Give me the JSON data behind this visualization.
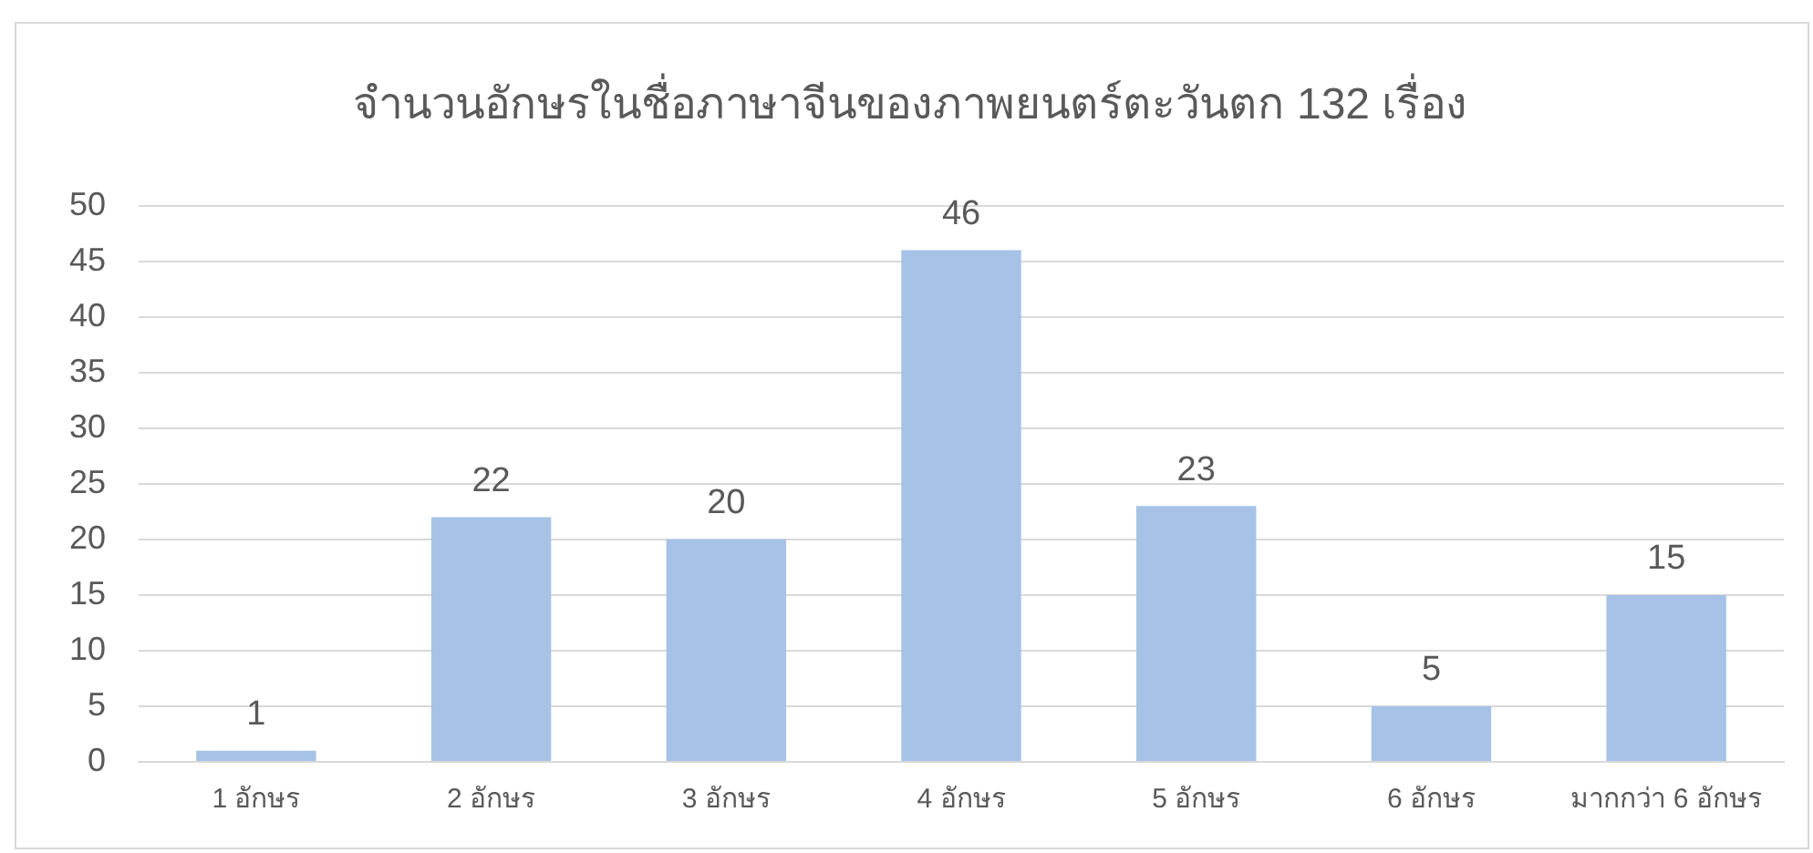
{
  "chart_data": {
    "type": "bar",
    "title": "จำนวนอักษรในชื่อภาษาจีนของภาพยนตร์ตะวันตก 132 เรื่อง",
    "categories": [
      "1 อักษร",
      "2 อักษร",
      "3 อักษร",
      "4 อักษร",
      "5 อักษร",
      "6 อักษร",
      "มากกว่า 6 อักษร"
    ],
    "values": [
      1,
      22,
      20,
      46,
      23,
      5,
      15
    ],
    "color": "#a6c3e7",
    "ylim": [
      0,
      50
    ],
    "yticks": [
      0,
      5,
      10,
      15,
      20,
      25,
      30,
      35,
      40,
      45,
      50
    ],
    "grid": "y",
    "data_labels": true
  }
}
